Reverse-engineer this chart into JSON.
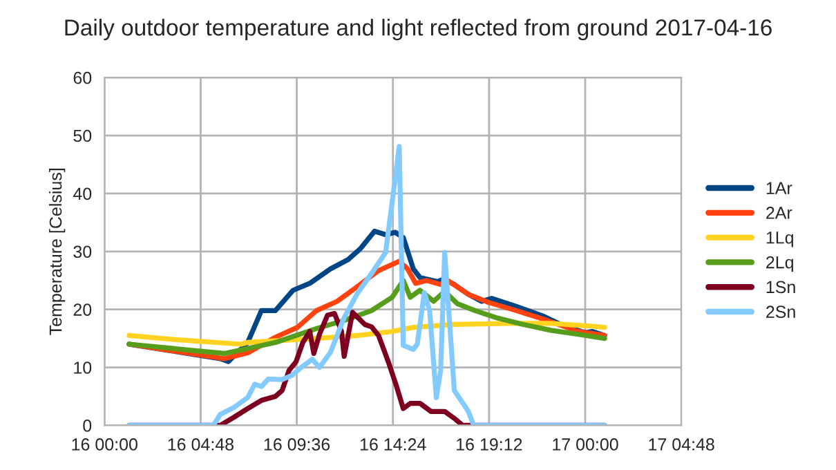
{
  "chart_data": {
    "type": "line",
    "title": "Daily outdoor temperature and light reflected from ground 2017-04-16",
    "ylabel": "Temperature [Celsius]",
    "xlim": [
      "2017-04-16T00:00",
      "2017-04-17T04:48"
    ],
    "xticks": [
      {
        "value": "2017-04-16T00:00",
        "label": "16 00:00"
      },
      {
        "value": "2017-04-16T04:48",
        "label": "16 04:48"
      },
      {
        "value": "2017-04-16T09:36",
        "label": "16 09:36"
      },
      {
        "value": "2017-04-16T14:24",
        "label": "16 14:24"
      },
      {
        "value": "2017-04-16T19:12",
        "label": "16 19:12"
      },
      {
        "value": "2017-04-17T00:00",
        "label": "17 00:00"
      },
      {
        "value": "2017-04-17T04:48",
        "label": "17 04:48"
      }
    ],
    "ylim": [
      0,
      60
    ],
    "yticks": [
      0,
      10,
      20,
      30,
      40,
      50,
      60
    ],
    "grid": true,
    "legend": "right",
    "marker": "none",
    "line_style": "solid",
    "series": [
      {
        "name": "1Ar",
        "color": "#004586",
        "x": [
          "2017-04-16T01:14",
          "2017-04-16T05:47",
          "2017-04-16T06:11",
          "2017-04-16T07:09",
          "2017-04-16T07:50",
          "2017-04-16T08:32",
          "2017-04-16T09:25",
          "2017-04-16T10:15",
          "2017-04-16T11:17",
          "2017-04-16T12:10",
          "2017-04-16T12:47",
          "2017-04-16T13:29",
          "2017-04-16T14:02",
          "2017-04-16T14:31",
          "2017-04-16T14:55",
          "2017-04-16T15:25",
          "2017-04-16T15:45",
          "2017-04-16T16:38",
          "2017-04-16T16:55",
          "2017-04-16T17:28",
          "2017-04-16T18:10",
          "2017-04-16T18:50",
          "2017-04-16T19:20",
          "2017-04-16T20:34",
          "2017-04-16T21:56",
          "2017-04-16T22:58",
          "2017-04-17T00:00",
          "2017-04-17T00:21",
          "2017-04-17T00:58"
        ],
        "values": [
          14,
          11.5,
          11,
          14.3,
          19.8,
          19.8,
          23.3,
          24.5,
          27,
          28.6,
          30.5,
          33.5,
          32.9,
          33.3,
          32.4,
          27,
          25.5,
          24.8,
          25.2,
          24.3,
          22.6,
          21.4,
          21.9,
          20.5,
          18.8,
          17.1,
          16,
          16.2,
          15.5
        ]
      },
      {
        "name": "2Ar",
        "color": "#ff420e",
        "x": [
          "2017-04-16T01:14",
          "2017-04-16T05:59",
          "2017-04-16T07:09",
          "2017-04-16T08:32",
          "2017-04-16T09:38",
          "2017-04-16T10:35",
          "2017-04-16T11:37",
          "2017-04-16T12:39",
          "2017-04-16T13:41",
          "2017-04-16T14:43",
          "2017-04-16T15:08",
          "2017-04-16T15:32",
          "2017-04-16T16:05",
          "2017-04-16T16:47",
          "2017-04-16T17:08",
          "2017-04-16T18:10",
          "2017-04-16T19:11",
          "2017-04-16T20:34",
          "2017-04-16T21:56",
          "2017-04-16T23:40",
          "2017-04-17T00:58"
        ],
        "values": [
          14,
          11.5,
          12.5,
          15.2,
          16.9,
          19.8,
          21.4,
          24,
          26.7,
          28.3,
          27,
          24.5,
          25,
          24.3,
          25,
          22.6,
          21.2,
          19.8,
          18.3,
          16.2,
          15.5
        ]
      },
      {
        "name": "1Lq",
        "color": "#ffd320",
        "x": [
          "2017-04-16T01:14",
          "2017-04-16T03:30",
          "2017-04-16T06:49",
          "2017-04-16T07:09",
          "2017-04-16T10:35",
          "2017-04-16T12:39",
          "2017-04-16T14:22",
          "2017-04-16T15:25",
          "2017-04-16T17:28",
          "2017-04-16T20:13",
          "2017-04-16T22:17",
          "2017-04-17T00:21",
          "2017-04-17T00:58"
        ],
        "values": [
          15.5,
          14.8,
          14,
          14.3,
          15,
          15.5,
          16.2,
          16.9,
          17.4,
          17.6,
          17.6,
          17.1,
          16.9
        ]
      },
      {
        "name": "2Lq",
        "color": "#579d1c",
        "x": [
          "2017-04-16T01:14",
          "2017-04-16T05:59",
          "2017-04-16T08:32",
          "2017-04-16T10:35",
          "2017-04-16T11:58",
          "2017-04-16T13:20",
          "2017-04-16T14:22",
          "2017-04-16T14:55",
          "2017-04-16T15:16",
          "2017-04-16T15:45",
          "2017-04-16T16:26",
          "2017-04-16T16:59",
          "2017-04-16T17:37",
          "2017-04-16T18:30",
          "2017-04-16T19:32",
          "2017-04-16T20:55",
          "2017-04-16T22:17",
          "2017-04-16T23:40",
          "2017-04-17T00:58"
        ],
        "values": [
          14,
          12.4,
          14.3,
          16.7,
          18.1,
          19.8,
          22.1,
          25,
          22.1,
          23.3,
          21.4,
          23.1,
          21,
          19.8,
          18.6,
          17.4,
          16.4,
          15.7,
          15
        ]
      },
      {
        "name": "1Sn",
        "color": "#7e0021",
        "x": [
          "2017-04-16T01:14",
          "2017-04-16T05:47",
          "2017-04-16T06:28",
          "2017-04-16T07:09",
          "2017-04-16T07:50",
          "2017-04-16T08:32",
          "2017-04-16T08:52",
          "2017-04-16T09:13",
          "2017-04-16T09:34",
          "2017-04-16T09:54",
          "2017-04-16T10:15",
          "2017-04-16T10:27",
          "2017-04-16T10:44",
          "2017-04-16T11:08",
          "2017-04-16T11:29",
          "2017-04-16T11:50",
          "2017-04-16T11:58",
          "2017-04-16T12:23",
          "2017-04-16T13:00",
          "2017-04-16T13:20",
          "2017-04-16T13:41",
          "2017-04-16T14:10",
          "2017-04-16T14:35",
          "2017-04-16T14:55",
          "2017-04-16T15:16",
          "2017-04-16T15:45",
          "2017-04-16T16:18",
          "2017-04-16T16:59",
          "2017-04-16T17:28",
          "2017-04-16T17:53",
          "2017-04-17T00:58"
        ],
        "values": [
          0,
          0,
          1.4,
          2.9,
          4.3,
          5,
          6,
          9.5,
          11,
          14.3,
          16.2,
          12.4,
          15.7,
          19,
          19.3,
          16.2,
          11.9,
          19.5,
          17.4,
          17,
          15.5,
          11,
          6.7,
          2.9,
          3.8,
          3.8,
          2.4,
          2.4,
          1.2,
          0,
          0
        ]
      },
      {
        "name": "2Sn",
        "color": "#83caff",
        "x": [
          "2017-04-16T01:14",
          "2017-04-16T05:26",
          "2017-04-16T05:47",
          "2017-04-16T06:28",
          "2017-04-16T07:09",
          "2017-04-16T07:30",
          "2017-04-16T07:50",
          "2017-04-16T08:11",
          "2017-04-16T08:52",
          "2017-04-16T09:21",
          "2017-04-16T09:54",
          "2017-04-16T10:23",
          "2017-04-16T10:44",
          "2017-04-16T11:17",
          "2017-04-16T11:58",
          "2017-04-16T12:39",
          "2017-04-16T13:20",
          "2017-04-16T14:02",
          "2017-04-16T14:22",
          "2017-04-16T14:43",
          "2017-04-16T14:55",
          "2017-04-16T15:25",
          "2017-04-16T15:37",
          "2017-04-16T15:58",
          "2017-04-16T16:14",
          "2017-04-16T16:34",
          "2017-04-16T16:47",
          "2017-04-16T16:59",
          "2017-04-16T17:28",
          "2017-04-16T18:10",
          "2017-04-16T18:26",
          "2017-04-17T00:58"
        ],
        "values": [
          0,
          0,
          1.9,
          3.1,
          4.8,
          7.1,
          6.7,
          8,
          7.9,
          8.6,
          10.2,
          11.4,
          10,
          12.6,
          18.6,
          22.9,
          26.2,
          29.8,
          38.6,
          48.1,
          13.8,
          13.1,
          14,
          22.9,
          19.8,
          4.8,
          9.5,
          29.8,
          6,
          2.4,
          0,
          0
        ]
      }
    ]
  }
}
